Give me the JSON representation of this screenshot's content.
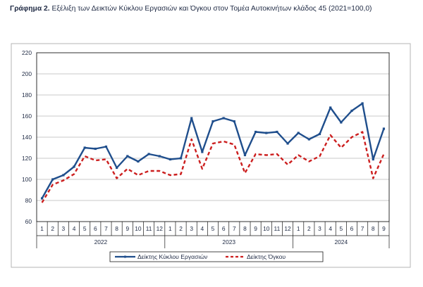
{
  "header": {
    "title_prefix": "Γράφημα 2.",
    "title_text": "Εξέλιξη των Δεικτών Κύκλου Εργασιών και Όγκου στον Τομέα Αυτοκινήτων κλάδος 45 (2021=100,0)"
  },
  "chart_data": {
    "type": "line",
    "title": "Εξέλιξη των Δεικτών Κύκλου Εργασιών και Όγκου στον Τομέα Αυτοκινήτων κλάδος 45 (2021=100,0)",
    "categories": [
      "1",
      "2",
      "3",
      "4",
      "5",
      "6",
      "7",
      "8",
      "9",
      "10",
      "11",
      "12",
      "1",
      "2",
      "3",
      "4",
      "5",
      "6",
      "7",
      "8",
      "9",
      "10",
      "11",
      "12",
      "1",
      "2",
      "3",
      "4",
      "5",
      "6",
      "7",
      "8",
      "9"
    ],
    "year_groups": [
      {
        "label": "2022",
        "count": 12
      },
      {
        "label": "2023",
        "count": 12
      },
      {
        "label": "2024",
        "count": 9
      }
    ],
    "ylim": [
      60,
      220
    ],
    "yticks": [
      60,
      80,
      100,
      120,
      140,
      160,
      180,
      200,
      220
    ],
    "grid": true,
    "legend_position": "bottom",
    "series": [
      {
        "name": "Δείκτης Κύκλου Εργασιών",
        "color": "#1f4e8c",
        "style": "solid",
        "values": [
          82,
          100,
          104,
          112,
          130,
          129,
          131,
          111,
          122,
          117,
          124,
          122,
          119,
          120,
          158,
          126,
          155,
          158,
          155,
          123,
          145,
          144,
          145,
          134,
          144,
          138,
          143,
          168,
          154,
          165,
          172,
          119,
          148
        ]
      },
      {
        "name": "Δείκτης Όγκου",
        "color": "#cc1f1f",
        "style": "dashed",
        "values": [
          78,
          95,
          99,
          105,
          122,
          118,
          119,
          101,
          110,
          104,
          108,
          108,
          104,
          105,
          138,
          110,
          134,
          136,
          133,
          106,
          124,
          123,
          124,
          114,
          123,
          117,
          122,
          142,
          130,
          140,
          145,
          101,
          124
        ]
      }
    ]
  }
}
